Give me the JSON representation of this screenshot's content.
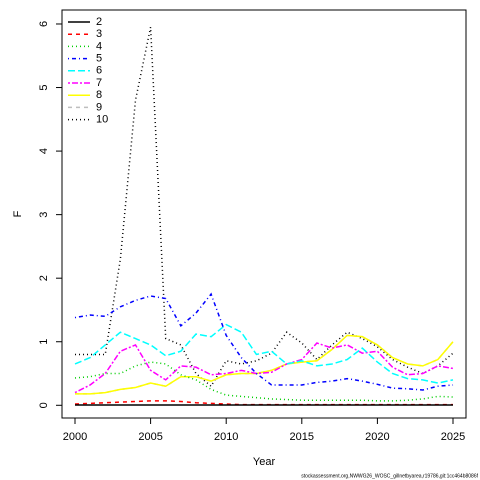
{
  "chart_data": {
    "type": "line",
    "xlabel": "Year",
    "ylabel": "F",
    "footer": "stockassessment.org,NWWG26_WOSC_gillnetbyarea,r19786,git:1cc464b8086f",
    "x": [
      2000,
      2001,
      2002,
      2003,
      2004,
      2005,
      2006,
      2007,
      2008,
      2009,
      2010,
      2011,
      2012,
      2013,
      2014,
      2015,
      2016,
      2017,
      2018,
      2019,
      2020,
      2021,
      2022,
      2023,
      2024,
      2025
    ],
    "xlim": [
      1999.14,
      2025.86
    ],
    "xticks": [
      2000,
      2005,
      2010,
      2015,
      2020,
      2025
    ],
    "ylim": [
      -0.2,
      6.22
    ],
    "yticks": [
      0,
      1,
      2,
      3,
      4,
      5,
      6
    ],
    "legend": "top-left",
    "series": [
      {
        "name": "2",
        "color": "#000000",
        "line_style": "solid",
        "values": [
          0.005,
          0.005,
          0.005,
          0.005,
          0.005,
          0.005,
          0.005,
          0.005,
          0.005,
          0.005,
          0.005,
          0.005,
          0.005,
          0.005,
          0.005,
          0.005,
          0.005,
          0.005,
          0.005,
          0.005,
          0.005,
          0.005,
          0.005,
          0.005,
          0.005,
          0.005
        ]
      },
      {
        "name": "3",
        "color": "#ff0000",
        "line_style": "dashed",
        "values": [
          0.02,
          0.03,
          0.04,
          0.05,
          0.06,
          0.07,
          0.07,
          0.06,
          0.04,
          0.03,
          0.02,
          0.01,
          0.01,
          0.01,
          0.01,
          0.01,
          0.01,
          0.01,
          0.01,
          0.01,
          0.01,
          0.01,
          0.01,
          0.01,
          0.01,
          0.01
        ]
      },
      {
        "name": "4",
        "color": "#00cd00",
        "line_style": "dotted",
        "values": [
          0.43,
          0.45,
          0.5,
          0.5,
          0.62,
          0.68,
          0.65,
          0.48,
          0.4,
          0.25,
          0.16,
          0.14,
          0.12,
          0.1,
          0.09,
          0.08,
          0.08,
          0.08,
          0.08,
          0.08,
          0.07,
          0.07,
          0.08,
          0.1,
          0.14,
          0.13
        ]
      },
      {
        "name": "5",
        "color": "#0000ff",
        "line_style": "dotdash",
        "values": [
          1.38,
          1.42,
          1.4,
          1.55,
          1.65,
          1.72,
          1.68,
          1.25,
          1.45,
          1.75,
          1.1,
          0.75,
          0.5,
          0.32,
          0.32,
          0.32,
          0.36,
          0.38,
          0.42,
          0.38,
          0.33,
          0.27,
          0.26,
          0.24,
          0.3,
          0.32
        ]
      },
      {
        "name": "6",
        "color": "#00ffff",
        "line_style": "longdash",
        "values": [
          0.65,
          0.75,
          0.95,
          1.15,
          1.05,
          0.95,
          0.78,
          0.85,
          1.12,
          1.08,
          1.27,
          1.15,
          0.8,
          0.85,
          0.65,
          0.7,
          0.62,
          0.65,
          0.72,
          0.9,
          0.68,
          0.5,
          0.42,
          0.4,
          0.35,
          0.4
        ]
      },
      {
        "name": "7",
        "color": "#ff00ff",
        "line_style": "twodash",
        "values": [
          0.2,
          0.32,
          0.5,
          0.85,
          0.95,
          0.55,
          0.4,
          0.62,
          0.6,
          0.48,
          0.5,
          0.55,
          0.5,
          0.52,
          0.65,
          0.72,
          0.98,
          0.9,
          0.95,
          0.82,
          0.85,
          0.6,
          0.48,
          0.5,
          0.62,
          0.58
        ]
      },
      {
        "name": "8",
        "color": "#ffff00",
        "line_style": "solid",
        "values": [
          0.18,
          0.18,
          0.2,
          0.25,
          0.28,
          0.35,
          0.3,
          0.45,
          0.45,
          0.38,
          0.48,
          0.5,
          0.5,
          0.55,
          0.65,
          0.68,
          0.7,
          0.88,
          1.1,
          1.08,
          0.95,
          0.75,
          0.65,
          0.62,
          0.72,
          1.0
        ]
      },
      {
        "name": "9",
        "color": "#bebebe",
        "line_style": "dashed",
        "values": [
          0.18,
          0.18,
          0.2,
          0.25,
          0.28,
          0.35,
          0.3,
          0.45,
          0.45,
          0.38,
          0.48,
          0.5,
          0.5,
          0.55,
          0.65,
          0.68,
          0.7,
          0.88,
          1.1,
          1.08,
          0.95,
          0.75,
          0.65,
          0.62,
          0.72,
          1.0
        ]
      },
      {
        "name": "10",
        "color": "#000000",
        "line_style": "dotted",
        "values": [
          0.8,
          0.8,
          0.8,
          2.3,
          4.8,
          5.95,
          1.05,
          0.95,
          0.5,
          0.3,
          0.7,
          0.65,
          0.7,
          0.82,
          1.15,
          0.98,
          0.72,
          0.95,
          1.15,
          1.05,
          0.92,
          0.72,
          0.6,
          0.5,
          0.62,
          0.82
        ]
      }
    ]
  }
}
